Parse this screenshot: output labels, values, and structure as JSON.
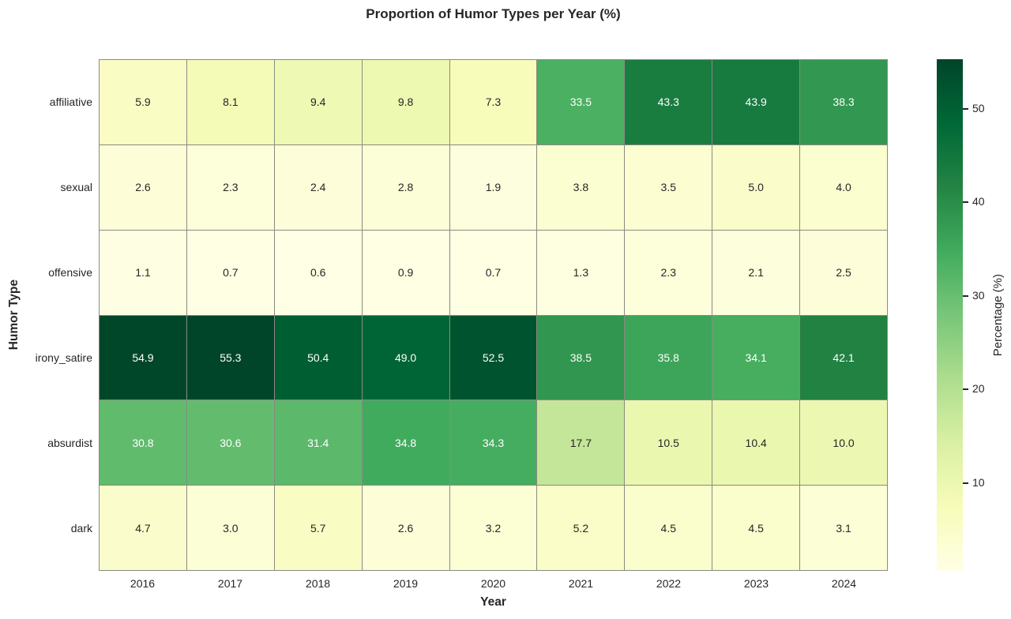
{
  "chart_data": {
    "type": "heatmap",
    "title": "Proportion of Humor Types per Year (%)",
    "xlabel": "Year",
    "ylabel": "Humor Type",
    "columns": [
      "2016",
      "2017",
      "2018",
      "2019",
      "2020",
      "2021",
      "2022",
      "2023",
      "2024"
    ],
    "rows": [
      "affiliative",
      "sexual",
      "offensive",
      "irony_satire",
      "absurdist",
      "dark"
    ],
    "values": [
      [
        5.9,
        8.1,
        9.4,
        9.8,
        7.3,
        33.5,
        43.3,
        43.9,
        38.3
      ],
      [
        2.6,
        2.3,
        2.4,
        2.8,
        1.9,
        3.8,
        3.5,
        5.0,
        4.0
      ],
      [
        1.1,
        0.7,
        0.6,
        0.9,
        0.7,
        1.3,
        2.3,
        2.1,
        2.5
      ],
      [
        54.9,
        55.3,
        50.4,
        49.0,
        52.5,
        38.5,
        35.8,
        34.1,
        42.1
      ],
      [
        30.8,
        30.6,
        31.4,
        34.8,
        34.3,
        17.7,
        10.5,
        10.4,
        10.0
      ],
      [
        4.7,
        3.0,
        5.7,
        2.6,
        3.2,
        5.2,
        4.5,
        4.5,
        3.1
      ]
    ],
    "annotations_format": "1 decimal place",
    "grid": true,
    "colorbar": {
      "label": "Percentage (%)",
      "ticks": [
        10,
        20,
        30,
        40,
        50
      ],
      "vmin": 0.6,
      "vmax": 55.3,
      "position": "right"
    },
    "colormap": {
      "name": "YlGn",
      "stops": [
        "#ffffe5",
        "#f7fcb9",
        "#d9f0a3",
        "#addd8e",
        "#78c679",
        "#41ab5d",
        "#238443",
        "#006837",
        "#004529"
      ]
    },
    "colors": {
      "background": "#ffffff",
      "grid_line": "#8a8a82",
      "text": "#262626",
      "annotation_light_cell": "#262626",
      "annotation_dark_cell": "#ffffff"
    }
  }
}
